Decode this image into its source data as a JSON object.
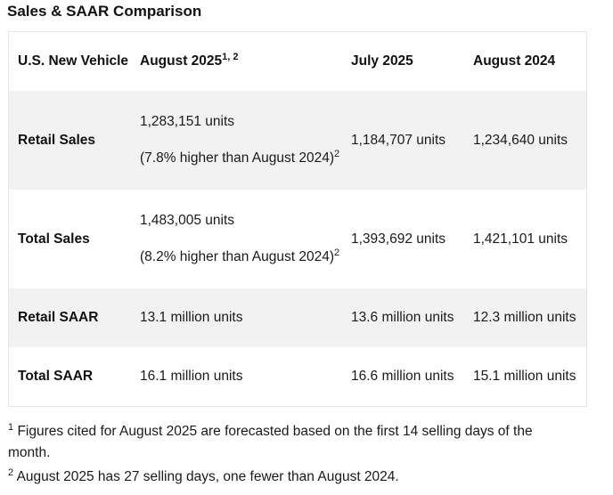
{
  "title": "Sales & SAAR Comparison",
  "table": {
    "headers": {
      "vehicle": "U.S. New Vehicle",
      "aug2025": "August 2025",
      "aug2025_refs": "1, 2",
      "jul2025": "July 2025",
      "aug2024": "August 2024"
    },
    "rows": [
      {
        "label": "Retail Sales",
        "aug2025": "1,283,151 units",
        "aug2025_note": "(7.8% higher than August 2024)",
        "aug2025_note_ref": "2",
        "jul2025": "1,184,707 units",
        "aug2024": "1,234,640 units"
      },
      {
        "label": "Total Sales",
        "aug2025": "1,483,005 units",
        "aug2025_note": "(8.2% higher than August 2024)",
        "aug2025_note_ref": "2",
        "jul2025": "1,393,692 units",
        "aug2024": "1,421,101 units"
      },
      {
        "label": "Retail SAAR",
        "aug2025": "13.1 million units",
        "jul2025": "13.6 million units",
        "aug2024": "12.3 million units"
      },
      {
        "label": "Total SAAR",
        "aug2025": "16.1 million units",
        "jul2025": "16.6 million units",
        "aug2024": "15.1 million units"
      }
    ]
  },
  "footnotes": [
    {
      "ref": "1",
      "text": "Figures cited for August 2025 are forecasted based on the first 14 selling days of the month."
    },
    {
      "ref": "2",
      "text": "August 2025 has 27 selling days, one fewer than August 2024."
    }
  ],
  "colors": {
    "shaded_row": "#f2f2f2",
    "border": "#e6e6e6",
    "text": "#1a1a1a"
  }
}
